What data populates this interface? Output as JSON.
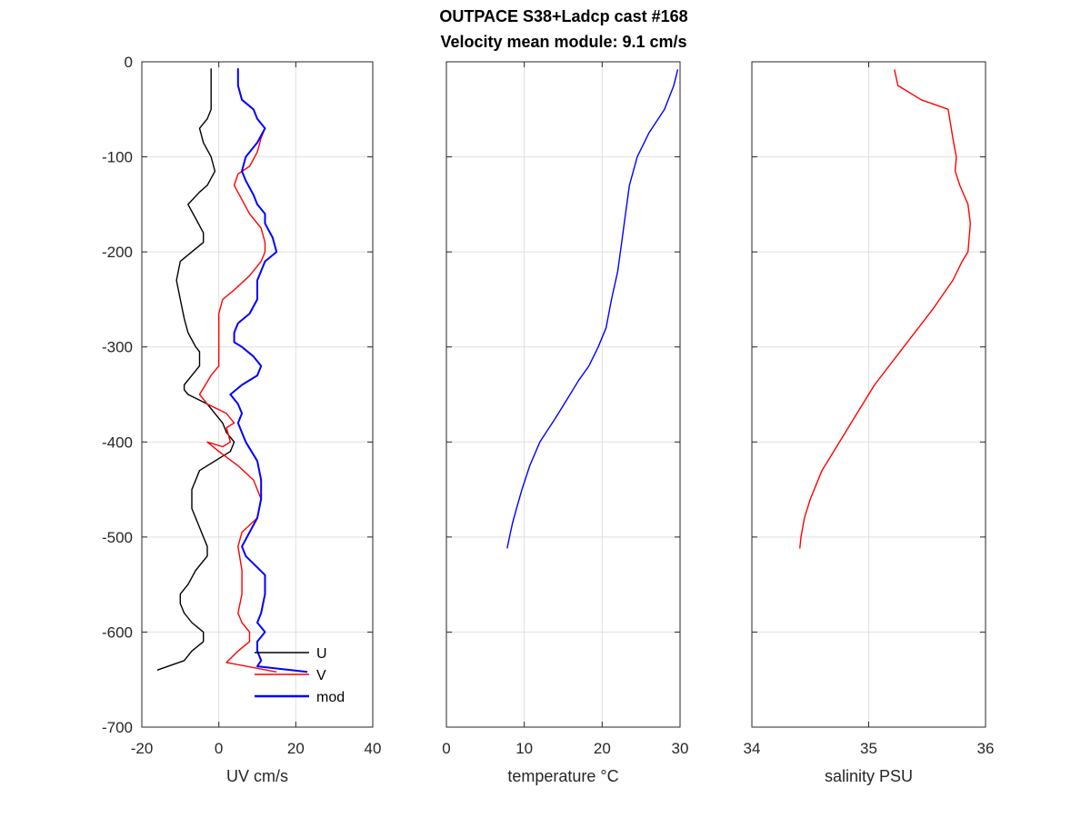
{
  "figure": {
    "title_line1": "OUTPACE S38+Ladcp cast #168",
    "title_line2": "Velocity mean module:  9.1 cm/s"
  },
  "chart_data": [
    {
      "type": "line",
      "xlabel": "UV cm/s",
      "ylabel": "",
      "xlim": [
        -20,
        40
      ],
      "ylim": [
        -700,
        0
      ],
      "xticks": [
        -20,
        0,
        20,
        40
      ],
      "xtick_labels": [
        "-20",
        "0",
        "20",
        "40"
      ],
      "yticks": [
        0,
        -100,
        -200,
        -300,
        -400,
        -500,
        -600,
        -700
      ],
      "ytick_labels": [
        "0",
        "-100",
        "-200",
        "-300",
        "-400",
        "-500",
        "-600",
        "-700"
      ],
      "grid": true,
      "legend": "bottom-right",
      "series": [
        {
          "name": "U",
          "color": "#000000",
          "x": [
            -2,
            -2,
            -2,
            -3,
            -5,
            -4,
            -2,
            -1,
            -3,
            -5,
            -8,
            -6,
            -4,
            -4,
            -7,
            -10,
            -11,
            -10,
            -9,
            -8,
            -6,
            -5,
            -5,
            -7,
            -9,
            -9,
            -8,
            -3,
            -1,
            1,
            2,
            4,
            3,
            -1,
            -5,
            -7,
            -7,
            -5,
            -3,
            -3,
            -6,
            -8,
            -10,
            -10,
            -9,
            -7,
            -4,
            -4,
            -7,
            -9,
            -16
          ],
          "y": [
            -7,
            -25,
            -50,
            -60,
            -70,
            -85,
            -100,
            -115,
            -130,
            -137,
            -150,
            -165,
            -180,
            -190,
            -200,
            -210,
            -230,
            -250,
            -270,
            -285,
            -300,
            -305,
            -320,
            -330,
            -340,
            -345,
            -350,
            -360,
            -370,
            -380,
            -390,
            -400,
            -410,
            -420,
            -430,
            -450,
            -470,
            -490,
            -510,
            -520,
            -535,
            -550,
            -560,
            -570,
            -580,
            -590,
            -600,
            -610,
            -620,
            -630,
            -640
          ]
        },
        {
          "name": "V",
          "color": "#ff0000",
          "x": [
            5,
            5,
            6,
            9,
            10,
            12,
            11,
            10,
            8,
            5,
            4,
            6,
            8,
            11,
            12,
            12,
            11,
            8,
            4,
            1,
            0,
            0,
            0,
            0,
            -2,
            -5,
            -3,
            2,
            4,
            2,
            3,
            1,
            -3,
            0,
            5,
            9,
            11,
            10,
            6,
            5,
            6,
            6,
            5,
            6,
            8,
            8,
            5,
            2,
            15
          ],
          "y": [
            -7,
            -25,
            -40,
            -50,
            -60,
            -70,
            -80,
            -95,
            -110,
            -118,
            -130,
            -145,
            -160,
            -175,
            -190,
            -200,
            -210,
            -225,
            -240,
            -250,
            -265,
            -285,
            -305,
            -320,
            -330,
            -350,
            -360,
            -370,
            -380,
            -385,
            -400,
            -405,
            -400,
            -410,
            -425,
            -440,
            -460,
            -480,
            -495,
            -510,
            -535,
            -560,
            -580,
            -590,
            -600,
            -610,
            -620,
            -632,
            -642
          ]
        },
        {
          "name": "mod",
          "color": "#0000ff",
          "x": [
            5,
            5,
            6,
            9,
            10,
            12,
            10,
            7,
            6,
            7,
            9,
            10,
            12,
            12,
            14,
            15,
            12,
            10,
            10,
            8,
            5,
            4,
            4,
            6,
            9,
            11,
            10,
            6,
            3,
            5,
            6,
            5,
            7,
            10,
            11,
            11,
            10,
            8,
            6,
            7,
            12,
            12,
            11,
            10,
            12,
            10,
            10,
            11,
            10,
            23
          ],
          "y": [
            -7,
            -25,
            -40,
            -50,
            -60,
            -70,
            -85,
            -100,
            -115,
            -125,
            -140,
            -150,
            -160,
            -170,
            -185,
            -200,
            -210,
            -230,
            -250,
            -265,
            -275,
            -285,
            -295,
            -300,
            -310,
            -320,
            -330,
            -340,
            -350,
            -360,
            -370,
            -380,
            -400,
            -420,
            -440,
            -460,
            -480,
            -495,
            -510,
            -520,
            -540,
            -560,
            -580,
            -590,
            -600,
            -610,
            -620,
            -630,
            -636,
            -642
          ]
        }
      ]
    },
    {
      "type": "line",
      "xlabel": "temperature °C",
      "ylabel": "",
      "xlim": [
        0,
        30
      ],
      "ylim": [
        -700,
        0
      ],
      "xticks": [
        0,
        10,
        20,
        30
      ],
      "xtick_labels": [
        "0",
        "10",
        "20",
        "30"
      ],
      "yticks": [
        0,
        -100,
        -200,
        -300,
        -400,
        -500,
        -600,
        -700
      ],
      "grid": true,
      "series": [
        {
          "color": "#0000ff",
          "x": [
            29.7,
            29.5,
            29.2,
            28,
            26,
            24.5,
            23.5,
            23,
            22.5,
            22,
            21.2,
            20.5,
            19.5,
            18.3,
            17,
            15.5,
            14,
            12,
            10.7,
            9.7,
            9,
            8.5,
            8.1,
            7.8
          ],
          "y": [
            -8,
            -15,
            -25,
            -50,
            -75,
            -100,
            -130,
            -160,
            -190,
            -220,
            -250,
            -280,
            -300,
            -320,
            -335,
            -355,
            -375,
            -400,
            -425,
            -450,
            -470,
            -485,
            -500,
            -512
          ]
        }
      ]
    },
    {
      "type": "line",
      "xlabel": "salinity PSU",
      "ylabel": "",
      "xlim": [
        34,
        36
      ],
      "ylim": [
        -700,
        0
      ],
      "xticks": [
        34,
        35,
        36
      ],
      "xtick_labels": [
        "34",
        "35",
        "36"
      ],
      "yticks": [
        0,
        -100,
        -200,
        -300,
        -400,
        -500,
        -600,
        -700
      ],
      "grid": true,
      "series": [
        {
          "color": "#ff0000",
          "x": [
            35.22,
            35.25,
            35.45,
            35.68,
            35.72,
            35.75,
            35.74,
            35.78,
            35.85,
            35.87,
            35.86,
            35.85,
            35.8,
            35.72,
            35.55,
            35.3,
            35.05,
            34.9,
            34.75,
            34.6,
            34.5,
            34.45,
            34.42,
            34.41
          ],
          "y": [
            -8,
            -25,
            -40,
            -50,
            -80,
            -100,
            -115,
            -130,
            -150,
            -170,
            -185,
            -200,
            -210,
            -230,
            -260,
            -300,
            -340,
            -370,
            -400,
            -430,
            -460,
            -480,
            -500,
            -512
          ]
        }
      ]
    }
  ]
}
